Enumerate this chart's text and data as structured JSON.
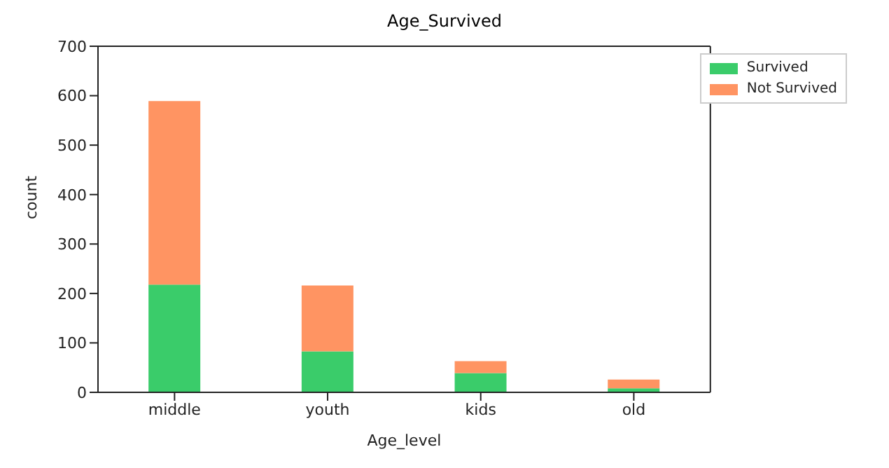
{
  "chart_data": {
    "type": "bar",
    "title": "Age_Survived",
    "xlabel": "Age_level",
    "ylabel": "count",
    "categories": [
      "middle",
      "youth",
      "kids",
      "old"
    ],
    "series": [
      {
        "name": "Survived",
        "color": "#3acc6a",
        "values": [
          218,
          83,
          39,
          8
        ]
      },
      {
        "name": "Not Survived",
        "color": "#ff9462",
        "values": [
          371,
          133,
          24,
          18
        ]
      }
    ],
    "stacked": true,
    "ylim": [
      0,
      700
    ],
    "yticks": [
      0,
      100,
      200,
      300,
      400,
      500,
      600,
      700
    ],
    "grid": false,
    "legend": "top right"
  }
}
